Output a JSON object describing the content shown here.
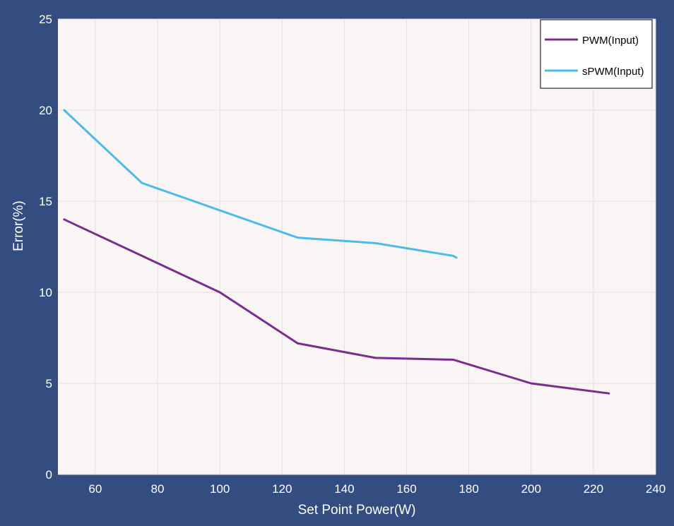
{
  "chart_data": {
    "type": "line",
    "xlabel": "Set Point Power(W)",
    "ylabel": "Error(%)",
    "xlim": [
      48,
      240
    ],
    "ylim": [
      0,
      25
    ],
    "xticks": [
      60,
      80,
      100,
      120,
      140,
      160,
      180,
      200,
      220,
      240
    ],
    "yticks": [
      0,
      5,
      10,
      15,
      20,
      25
    ],
    "grid": true,
    "legend_position": "top-right",
    "background": "#344d80",
    "plot_background": "#f9f5f5",
    "series": [
      {
        "name": "PWM(Input)",
        "color": "#7b2d8e",
        "x": [
          50,
          75,
          100,
          125,
          150,
          175,
          200,
          225
        ],
        "y": [
          14,
          12,
          10,
          7.2,
          6.4,
          6.3,
          5,
          4.45
        ]
      },
      {
        "name": "sPWM(Input)",
        "color": "#4dbbe8",
        "x": [
          50,
          75,
          100,
          125,
          150,
          175,
          176
        ],
        "y": [
          20,
          16,
          14.5,
          13,
          12.7,
          12,
          11.9
        ]
      }
    ]
  }
}
